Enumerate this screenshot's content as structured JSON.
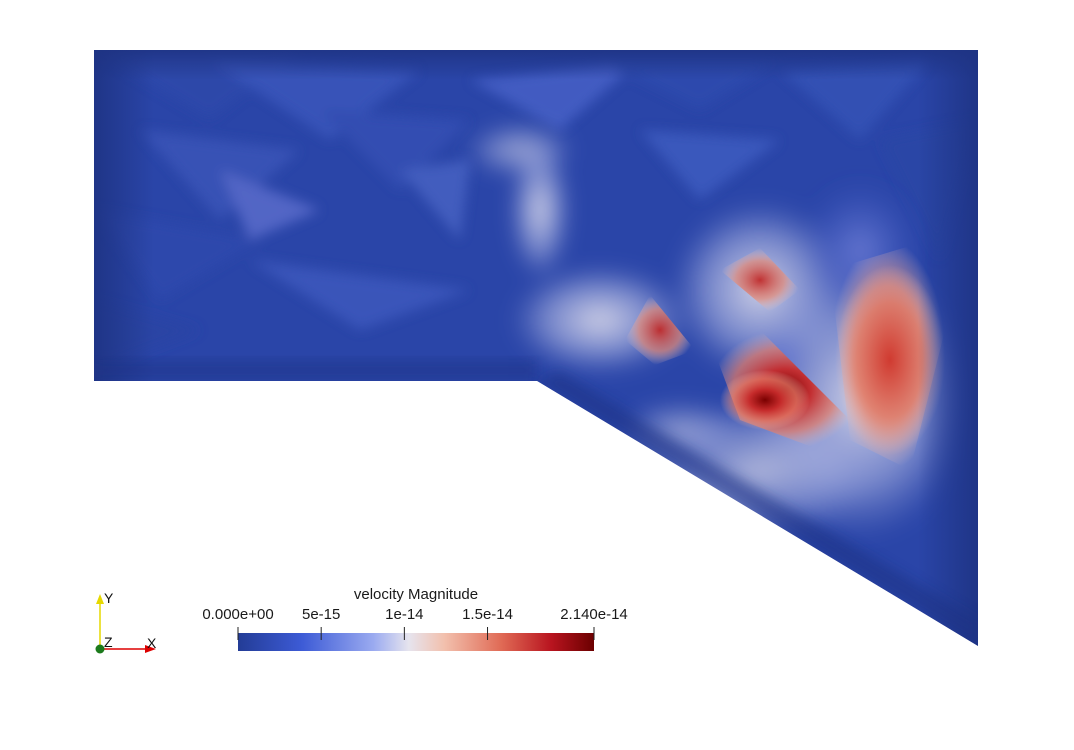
{
  "colorbar": {
    "title": "velocity Magnitude",
    "range": [
      0.0,
      2.14e-14
    ],
    "ticks": [
      {
        "value": 0.0,
        "label": "0.000e+00"
      },
      {
        "value": 5e-15,
        "label": "5e-15"
      },
      {
        "value": 1e-14,
        "label": "1e-14"
      },
      {
        "value": 1.5e-14,
        "label": "1.5e-14"
      },
      {
        "value": 2.14e-14,
        "label": "2.140e-14"
      }
    ],
    "colormap": [
      "#3b4cc0",
      "#6788ee",
      "#9abbff",
      "#c9d7f0",
      "#edd1c2",
      "#f7a889",
      "#e26952",
      "#b40426",
      "#7a0000"
    ]
  },
  "axes": {
    "y_label": "Y",
    "z_label": "Z",
    "x_label": "X",
    "x_color": "#dd0000",
    "y_color": "#e6d800",
    "z_color": "#1c7a1c"
  }
}
